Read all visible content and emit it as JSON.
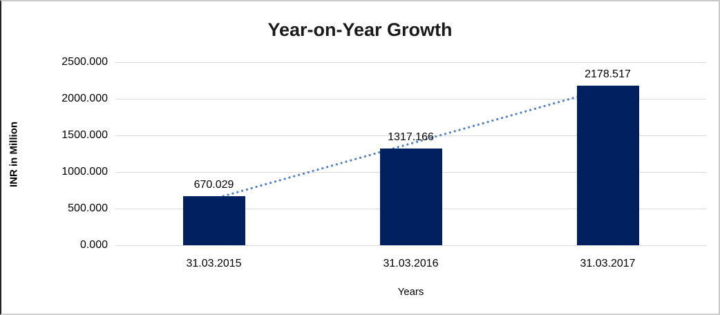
{
  "chart_data": {
    "type": "bar",
    "title": "Year-on-Year Growth",
    "categories": [
      "31.03.2015",
      "31.03.2016",
      "31.03.2017"
    ],
    "values": [
      670.029,
      1317.166,
      2178.517
    ],
    "data_labels": [
      "670.029",
      "1317.166",
      "2178.517"
    ],
    "xlabel": "Years",
    "ylabel": "INR in Million",
    "ylim": [
      0,
      2500
    ],
    "y_tick_step": 500,
    "y_tick_labels": [
      "0.000",
      "500.000",
      "1000.000",
      "1500.000",
      "2000.000",
      "2500.000"
    ],
    "grid": true,
    "legend": "none",
    "bar_color": "#002060",
    "gridline_color": "#d9d9d9",
    "trendline": {
      "type": "linear",
      "style": "dotted",
      "color": "#4f81bd"
    }
  }
}
